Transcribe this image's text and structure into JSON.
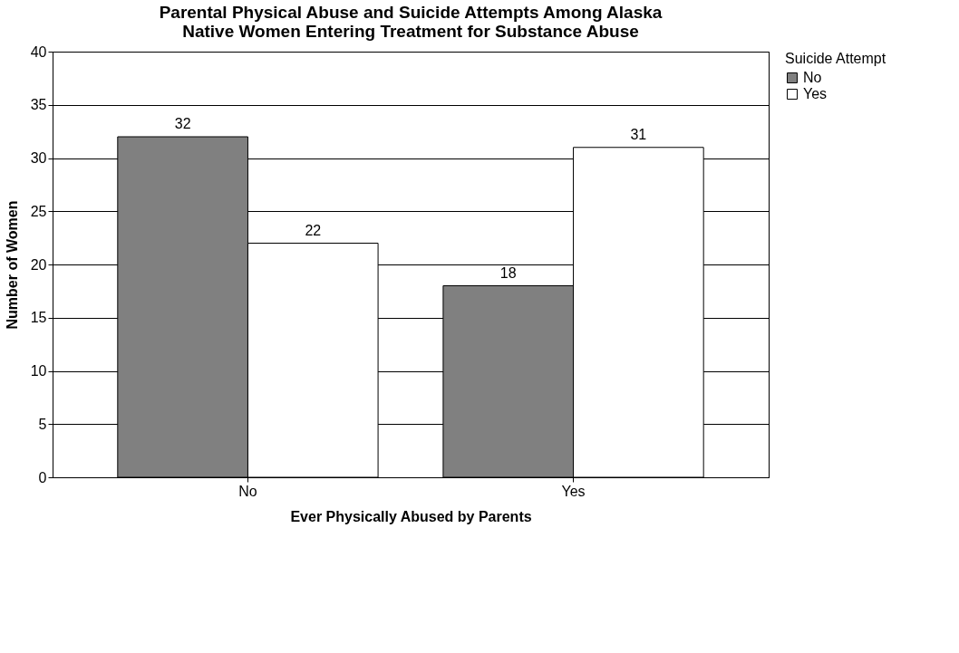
{
  "chart_data": {
    "type": "bar",
    "title": [
      "Parental Physical Abuse and Suicide Attempts Among Alaska",
      "Native Women Entering Treatment for Substance Abuse"
    ],
    "xlabel": "Ever Physically Abused by Parents",
    "ylabel": "Number of Women",
    "legend_title": "Suicide Attempt",
    "categories": [
      "No",
      "Yes"
    ],
    "series": [
      {
        "name": "No",
        "color": "#808080",
        "values": [
          32,
          18
        ]
      },
      {
        "name": "Yes",
        "color": "#ffffff",
        "values": [
          22,
          31
        ]
      }
    ],
    "ylim": [
      0,
      40
    ],
    "yticks": [
      0,
      5,
      10,
      15,
      20,
      25,
      30,
      35,
      40
    ],
    "grid": "y",
    "legend": "right",
    "data_labels": true
  }
}
